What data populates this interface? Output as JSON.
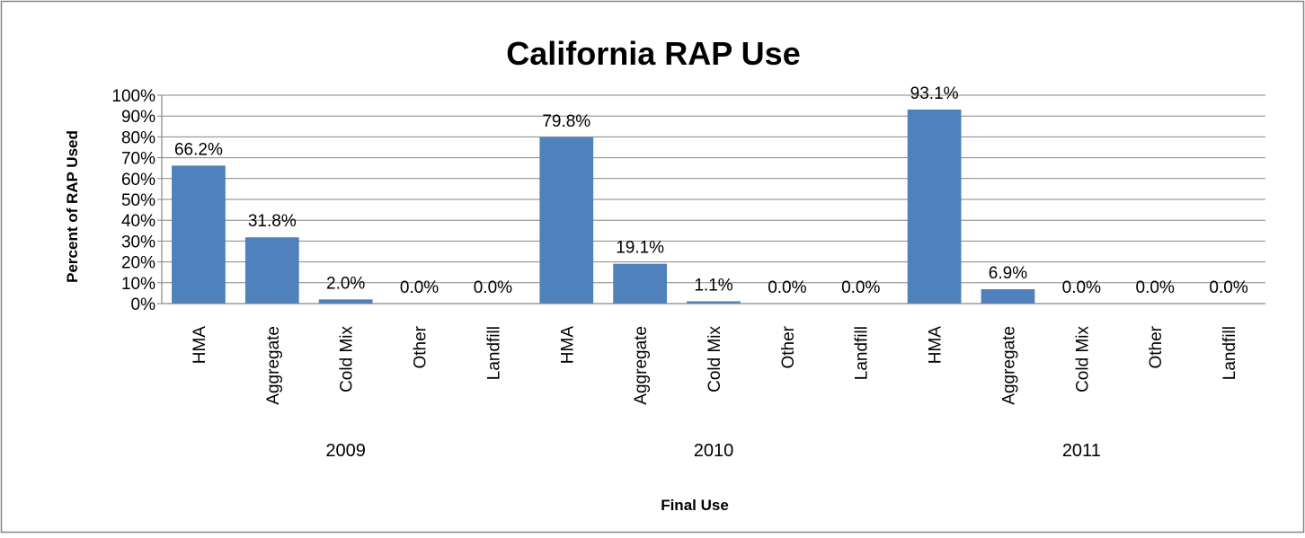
{
  "chart_data": {
    "type": "bar",
    "title": "California RAP Use",
    "xlabel": "Final Use",
    "ylabel": "Percent of RAP Used",
    "ylim": [
      0,
      100
    ],
    "yticks": [
      "0%",
      "10%",
      "20%",
      "30%",
      "40%",
      "50%",
      "60%",
      "70%",
      "80%",
      "90%",
      "100%"
    ],
    "grid": true,
    "legend": "none",
    "bar_color": "#4f81bd",
    "groups": [
      {
        "label": "2009",
        "categories": [
          "HMA",
          "Aggregate",
          "Cold Mix",
          "Other",
          "Landfill"
        ],
        "values": [
          66.2,
          31.8,
          2.0,
          0.0,
          0.0
        ],
        "labels": [
          "66.2%",
          "31.8%",
          "2.0%",
          "0.0%",
          "0.0%"
        ]
      },
      {
        "label": "2010",
        "categories": [
          "HMA",
          "Aggregate",
          "Cold Mix",
          "Other",
          "Landfill"
        ],
        "values": [
          79.8,
          19.1,
          1.1,
          0.0,
          0.0
        ],
        "labels": [
          "79.8%",
          "19.1%",
          "1.1%",
          "0.0%",
          "0.0%"
        ]
      },
      {
        "label": "2011",
        "categories": [
          "HMA",
          "Aggregate",
          "Cold Mix",
          "Other",
          "Landfill"
        ],
        "values": [
          93.1,
          6.9,
          0.0,
          0.0,
          0.0
        ],
        "labels": [
          "93.1%",
          "6.9%",
          "0.0%",
          "0.0%",
          "0.0%"
        ]
      }
    ]
  }
}
